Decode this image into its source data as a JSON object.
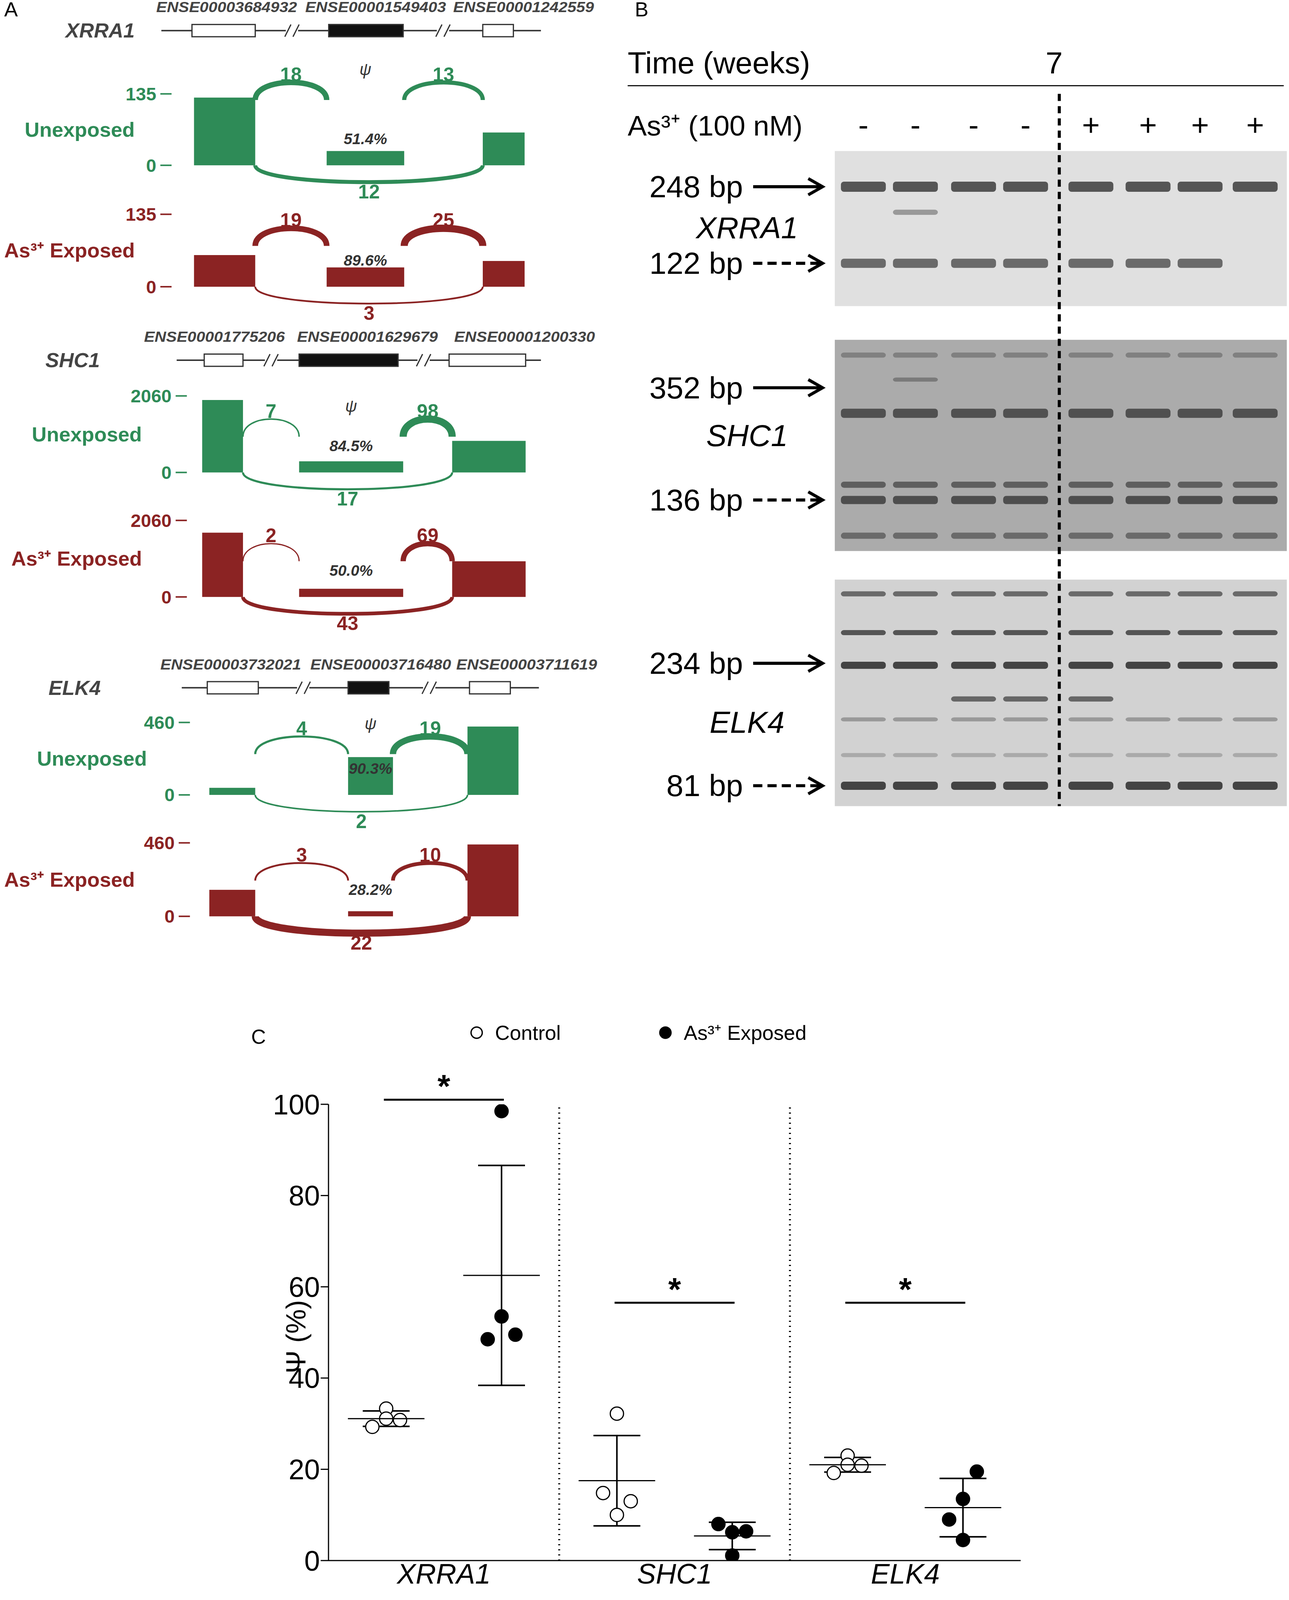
{
  "panels": {
    "A": {
      "label": "A",
      "psi_symbol": "ψ",
      "genes": [
        {
          "name": "XRRA1",
          "exons": [
            "ENSE00003684932",
            "ENSE00001549403",
            "ENSE00001242559"
          ],
          "tracks": [
            {
              "name": "Unexposed",
              "color": "#2e8b57",
              "ylim": [
                0,
                135
              ],
              "coverage": [
                128,
                27,
                62
              ],
              "junctions": {
                "left": 18,
                "right": 13,
                "skip": 12
              },
              "psi": "51.4%"
            },
            {
              "name": "As³⁺ Exposed",
              "color": "#8b2323",
              "ylim": [
                0,
                135
              ],
              "coverage": [
                59,
                36,
                48
              ],
              "junctions": {
                "left": 19,
                "right": 25,
                "skip": 3
              },
              "psi": "89.6%"
            }
          ]
        },
        {
          "name": "SHC1",
          "exons": [
            "ENSE00001775206",
            "ENSE00001629679",
            "ENSE00001200330"
          ],
          "tracks": [
            {
              "name": "Unexposed",
              "color": "#2e8b57",
              "ylim": [
                0,
                2060
              ],
              "coverage": [
                1950,
                300,
                850
              ],
              "junctions": {
                "left": 7,
                "right": 98,
                "skip": 17
              },
              "psi": "84.5%"
            },
            {
              "name": "As³⁺ Exposed",
              "color": "#8b2323",
              "ylim": [
                0,
                2060
              ],
              "coverage": [
                1730,
                220,
                960
              ],
              "junctions": {
                "left": 2,
                "right": 69,
                "skip": 43
              },
              "psi": "50.0%"
            }
          ]
        },
        {
          "name": "ELK4",
          "exons": [
            "ENSE00003732021",
            "ENSE00003716480",
            "ENSE00003711619"
          ],
          "tracks": [
            {
              "name": "Unexposed",
              "color": "#2e8b57",
              "ylim": [
                0,
                460
              ],
              "coverage": [
                45,
                240,
                434
              ],
              "junctions": {
                "left": 4,
                "right": 19,
                "skip": 2
              },
              "psi": "90.3%"
            },
            {
              "name": "As³⁺ Exposed",
              "color": "#8b2323",
              "ylim": [
                0,
                460
              ],
              "coverage": [
                166,
                32,
                450
              ],
              "junctions": {
                "left": 3,
                "right": 10,
                "skip": 22
              },
              "psi": "28.2%"
            }
          ]
        }
      ]
    },
    "B": {
      "label": "B",
      "time_label": "Time (weeks)",
      "time": 7,
      "treatment_label": "As³⁺ (100 nM)",
      "lanes": [
        "-",
        "-",
        "-",
        "-",
        "+",
        "+",
        "+",
        "+"
      ],
      "gels": [
        {
          "gene": "XRRA1",
          "markers": [
            {
              "label": "248 bp",
              "line_style": "solid"
            },
            {
              "label": "122 bp",
              "line_style": "dashed"
            }
          ]
        },
        {
          "gene": "SHC1",
          "markers": [
            {
              "label": "352 bp",
              "line_style": "solid"
            },
            {
              "label": "136 bp",
              "line_style": "dashed"
            }
          ]
        },
        {
          "gene": "ELK4",
          "markers": [
            {
              "label": "234 bp",
              "line_style": "solid"
            },
            {
              "label": "81 bp",
              "line_style": "dashed"
            }
          ]
        }
      ]
    }
  },
  "chart_data": {
    "type": "scatter",
    "label": "C",
    "categories": [
      "XRRA1",
      "SHC1",
      "ELK4"
    ],
    "y_label": "Ψ (%)",
    "ylim": [
      0,
      100
    ],
    "yticks": [
      0,
      20,
      40,
      60,
      80,
      100
    ],
    "legend": "top",
    "series": [
      {
        "name": "Control",
        "color": "#000000",
        "marker": "open_circle",
        "values": [
          [
            33.3,
            29.3,
            30.8,
            31.1
          ],
          [
            32.2,
            14.8,
            13.0,
            10.0
          ],
          [
            23.0,
            19.2,
            20.8,
            21.0
          ]
        ],
        "mean": [
          31.1,
          17.5,
          21.0
        ],
        "sd": [
          1.7,
          9.9,
          1.6
        ]
      },
      {
        "name": "As³⁺ Exposed",
        "color": "#000000",
        "marker": "filled_circle",
        "values": [
          [
            98.5,
            48.5,
            49.5,
            53.5
          ],
          [
            6.2,
            8.0,
            6.4,
            1.1
          ],
          [
            13.5,
            9.0,
            19.5,
            4.5
          ]
        ],
        "mean": [
          62.5,
          5.4,
          11.6
        ],
        "sd": [
          24.1,
          3.0,
          6.4
        ]
      }
    ],
    "annotations": [
      {
        "text": "*",
        "category": "XRRA1",
        "y": 101
      },
      {
        "text": "*",
        "category": "SHC1",
        "y": 56.5
      },
      {
        "text": "*",
        "category": "ELK4",
        "y": 56.5
      }
    ]
  }
}
